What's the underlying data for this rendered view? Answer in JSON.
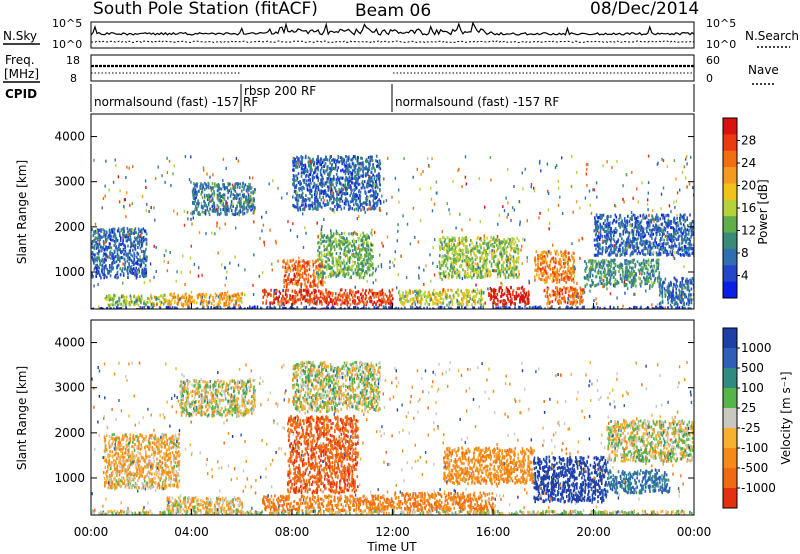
{
  "chart_data": {
    "type": "heatmap",
    "title": "South Pole Station (fitACF)",
    "beam": "Beam 06",
    "date": "08/Dec/2014",
    "xlabel": "Time UT",
    "x_ticks": [
      "00:00",
      "04:00",
      "08:00",
      "12:00",
      "16:00",
      "20:00",
      "00:00"
    ],
    "x_range_hours": [
      0,
      24
    ],
    "top_panels": {
      "nsky": {
        "label": "N.Sky",
        "ticks": [
          "10^5",
          "10^0"
        ],
        "right_label": "N.Search",
        "right_ticks": [
          "10^5",
          "10^0"
        ]
      },
      "freq": {
        "label_line1": "Freq.",
        "label_line2": "[MHz]",
        "ticks": [
          18,
          8
        ],
        "right_label": "Nave",
        "right_ticks": [
          60,
          0
        ]
      },
      "cpid": {
        "label": "CPID",
        "segments": [
          {
            "name": "normalsound (fast) -157 RF",
            "start_hour": 0,
            "end_hour": 6.0
          },
          {
            "name": "rbsp 200 RF",
            "start_hour": 6.0,
            "end_hour": 12.0
          },
          {
            "name": "normalsound (fast) -157 RF",
            "start_hour": 12.0,
            "end_hour": 24
          }
        ]
      }
    },
    "panels": [
      {
        "name": "power",
        "ylabel": "Slant Range [km]",
        "y_ticks": [
          1000,
          2000,
          3000,
          4000
        ],
        "y_range": [
          180,
          4500
        ],
        "colorbar_label": "Power [dB]",
        "colorbar_ticks": [
          "28",
          "24",
          "20",
          "16",
          "12",
          "8",
          "4"
        ],
        "colors": [
          "#0a1ee6",
          "#2346c8",
          "#2f6fb0",
          "#3a8a78",
          "#5fae4a",
          "#b6d23a",
          "#f0c21a",
          "#f59a1e",
          "#f36d12",
          "#ea3a10",
          "#d8120c"
        ]
      },
      {
        "name": "velocity",
        "ylabel": "Slant Range [km]",
        "y_ticks": [
          1000,
          2000,
          3000,
          4000
        ],
        "y_range": [
          180,
          4500
        ],
        "colorbar_label": "Velocity [m s⁻¹]",
        "colorbar_ticks": [
          "1000",
          "500",
          "100",
          "25",
          "-25",
          "-100",
          "-500",
          "-1000"
        ],
        "colors": [
          "#1f3fa8",
          "#2e5fb8",
          "#2f8a80",
          "#55b44a",
          "#c8c8c0",
          "#f7b030",
          "#f58a18",
          "#ef6a12",
          "#e23010"
        ]
      }
    ],
    "power_regions": [
      {
        "t0": 0,
        "t1": 24,
        "r0": 180,
        "r1": 260,
        "v": 4
      },
      {
        "t0": 6.8,
        "t1": 12.0,
        "r0": 300,
        "r1": 640,
        "v": 26
      },
      {
        "t0": 3.0,
        "t1": 6.0,
        "r0": 280,
        "r1": 560,
        "v": 20
      },
      {
        "t0": 0.5,
        "t1": 3.0,
        "r0": 280,
        "r1": 520,
        "v": 14
      },
      {
        "t0": 7.6,
        "t1": 9.2,
        "r0": 700,
        "r1": 1300,
        "v": 24
      },
      {
        "t0": 15.8,
        "t1": 17.4,
        "r0": 300,
        "r1": 700,
        "v": 28
      },
      {
        "t0": 18.0,
        "t1": 19.6,
        "r0": 320,
        "r1": 700,
        "v": 24
      },
      {
        "t0": 17.6,
        "t1": 19.2,
        "r0": 800,
        "r1": 1500,
        "v": 22
      },
      {
        "t0": 12.2,
        "t1": 15.6,
        "r0": 300,
        "r1": 640,
        "v": 16
      },
      {
        "t0": 13.8,
        "t1": 17.0,
        "r0": 900,
        "r1": 1800,
        "v": 14
      },
      {
        "t0": 9.0,
        "t1": 11.2,
        "r0": 900,
        "r1": 1900,
        "v": 12
      },
      {
        "t0": 4.0,
        "t1": 6.5,
        "r0": 2300,
        "r1": 3000,
        "v": 8
      },
      {
        "t0": 8.0,
        "t1": 11.5,
        "r0": 2400,
        "r1": 3600,
        "v": 6
      },
      {
        "t0": 0.0,
        "t1": 2.2,
        "r0": 900,
        "r1": 2000,
        "v": 6
      },
      {
        "t0": 20.0,
        "t1": 24.0,
        "r0": 1400,
        "r1": 2300,
        "v": 6
      },
      {
        "t0": 19.6,
        "t1": 22.6,
        "r0": 700,
        "r1": 1300,
        "v": 10
      },
      {
        "t0": 22.6,
        "t1": 24.0,
        "r0": 300,
        "r1": 900,
        "v": 6
      }
    ],
    "velocity_regions": [
      {
        "t0": 6.8,
        "t1": 12.0,
        "r0": 300,
        "r1": 640,
        "v": -300
      },
      {
        "t0": 12.0,
        "t1": 16.0,
        "r0": 300,
        "r1": 700,
        "v": -300
      },
      {
        "t0": 7.8,
        "t1": 10.6,
        "r0": 700,
        "r1": 2400,
        "v": -450
      },
      {
        "t0": 3.0,
        "t1": 6.0,
        "r0": 280,
        "r1": 600,
        "v": -60
      },
      {
        "t0": 14.0,
        "t1": 17.6,
        "r0": 900,
        "r1": 1700,
        "v": -200
      },
      {
        "t0": 17.6,
        "t1": 20.5,
        "r0": 500,
        "r1": 1500,
        "v": 600
      },
      {
        "t0": 20.5,
        "t1": 23.0,
        "r0": 700,
        "r1": 1200,
        "v": 300
      },
      {
        "t0": 0.5,
        "t1": 3.5,
        "r0": 800,
        "r1": 2000,
        "v": -80
      },
      {
        "t0": 3.5,
        "t1": 6.5,
        "r0": 2400,
        "r1": 3200,
        "v": 0
      },
      {
        "t0": 8.0,
        "t1": 11.5,
        "r0": 2500,
        "r1": 3600,
        "v": 0
      },
      {
        "t0": 20.5,
        "t1": 24.0,
        "r0": 1400,
        "r1": 2300,
        "v": 0
      },
      {
        "t0": 0,
        "t1": 24,
        "r0": 180,
        "r1": 300,
        "v": 0
      }
    ]
  }
}
